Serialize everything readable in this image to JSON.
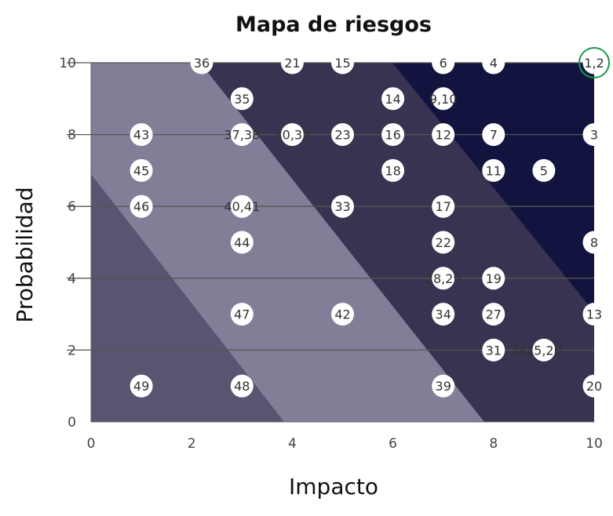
{
  "chart_data": {
    "type": "scatter",
    "title": "Mapa de riesgos",
    "xlabel": "Impacto",
    "ylabel": "Probabilidad",
    "xlim": [
      0,
      10
    ],
    "ylim": [
      0,
      10
    ],
    "xticks": [
      "0",
      "2",
      "4",
      "6",
      "8",
      "10"
    ],
    "yticks": [
      "0",
      "2",
      "4",
      "6",
      "8",
      "10"
    ],
    "grid": "horizontal",
    "zone_colors": [
      "#595470",
      "#847d97",
      "#373350",
      "#12143f"
    ],
    "gridline_color": "#555555",
    "marker_color": "#ffffff",
    "highlight_color": "#1a9a4b",
    "points": [
      {
        "label": "1,2",
        "x": 10,
        "y": 10,
        "highlighted": true
      },
      {
        "label": "36",
        "x": 2.2,
        "y": 10
      },
      {
        "label": "21",
        "x": 4,
        "y": 10
      },
      {
        "label": "15",
        "x": 5,
        "y": 10
      },
      {
        "label": "6",
        "x": 7,
        "y": 10
      },
      {
        "label": "4",
        "x": 8,
        "y": 10
      },
      {
        "label": "35",
        "x": 3,
        "y": 9
      },
      {
        "label": "14",
        "x": 6,
        "y": 9
      },
      {
        "label": "9,10",
        "x": 7,
        "y": 9
      },
      {
        "label": "43",
        "x": 1,
        "y": 8
      },
      {
        "label": "37,38",
        "x": 3,
        "y": 8
      },
      {
        "label": "30,32",
        "x": 4,
        "y": 8
      },
      {
        "label": "23",
        "x": 5,
        "y": 8
      },
      {
        "label": "16",
        "x": 6,
        "y": 8
      },
      {
        "label": "12",
        "x": 7,
        "y": 8
      },
      {
        "label": "7",
        "x": 8,
        "y": 8
      },
      {
        "label": "3",
        "x": 10,
        "y": 8
      },
      {
        "label": "45",
        "x": 1,
        "y": 7
      },
      {
        "label": "18",
        "x": 6,
        "y": 7
      },
      {
        "label": "11",
        "x": 8,
        "y": 7
      },
      {
        "label": "5",
        "x": 9,
        "y": 7
      },
      {
        "label": "46",
        "x": 1,
        "y": 6
      },
      {
        "label": "40,41",
        "x": 3,
        "y": 6
      },
      {
        "label": "33",
        "x": 5,
        "y": 6
      },
      {
        "label": "17",
        "x": 7,
        "y": 6
      },
      {
        "label": "44",
        "x": 3,
        "y": 5
      },
      {
        "label": "22",
        "x": 7,
        "y": 5
      },
      {
        "label": "8",
        "x": 10,
        "y": 5
      },
      {
        "label": "28,29",
        "x": 7,
        "y": 4
      },
      {
        "label": "19",
        "x": 8,
        "y": 4
      },
      {
        "label": "47",
        "x": 3,
        "y": 3
      },
      {
        "label": "42",
        "x": 5,
        "y": 3
      },
      {
        "label": "34",
        "x": 7,
        "y": 3
      },
      {
        "label": "27",
        "x": 8,
        "y": 3
      },
      {
        "label": "13",
        "x": 10,
        "y": 3
      },
      {
        "label": "31",
        "x": 8,
        "y": 2
      },
      {
        "label": "24",
        "x": 8.5,
        "y": 2,
        "no_marker": true
      },
      {
        "label": "25,26",
        "x": 9,
        "y": 2
      },
      {
        "label": "49",
        "x": 1,
        "y": 1
      },
      {
        "label": "48",
        "x": 3,
        "y": 1
      },
      {
        "label": "39",
        "x": 7,
        "y": 1
      },
      {
        "label": "20",
        "x": 10,
        "y": 1
      }
    ]
  }
}
